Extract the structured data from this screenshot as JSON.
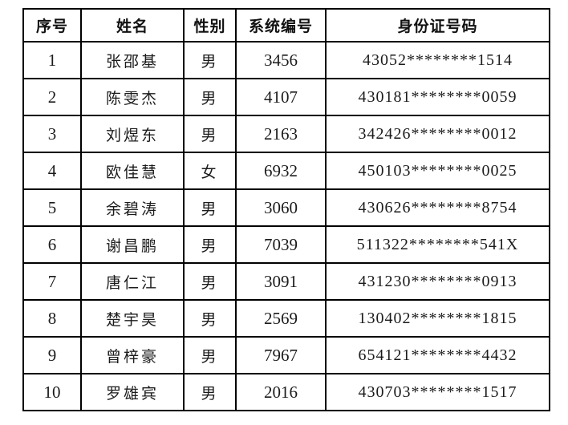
{
  "table": {
    "headers": {
      "serial": "序号",
      "name": "姓名",
      "gender": "性别",
      "system_id": "系统编号",
      "id_number": "身份证号码"
    },
    "rows": [
      {
        "no": "1",
        "name": "张邵基",
        "gender": "男",
        "system_id": "3456",
        "id_number": "43052********1514"
      },
      {
        "no": "2",
        "name": "陈雯杰",
        "gender": "男",
        "system_id": "4107",
        "id_number": "430181********0059"
      },
      {
        "no": "3",
        "name": "刘煜东",
        "gender": "男",
        "system_id": "2163",
        "id_number": "342426********0012"
      },
      {
        "no": "4",
        "name": "欧佳慧",
        "gender": "女",
        "system_id": "6932",
        "id_number": "450103********0025"
      },
      {
        "no": "5",
        "name": "余碧涛",
        "gender": "男",
        "system_id": "3060",
        "id_number": "430626********8754"
      },
      {
        "no": "6",
        "name": "谢昌鹏",
        "gender": "男",
        "system_id": "7039",
        "id_number": "511322********541X"
      },
      {
        "no": "7",
        "name": "唐仁江",
        "gender": "男",
        "system_id": "3091",
        "id_number": "431230********0913"
      },
      {
        "no": "8",
        "name": "楚宇昊",
        "gender": "男",
        "system_id": "2569",
        "id_number": "130402********1815"
      },
      {
        "no": "9",
        "name": "曾梓豪",
        "gender": "男",
        "system_id": "7967",
        "id_number": "654121********4432"
      },
      {
        "no": "10",
        "name": "罗雄宾",
        "gender": "男",
        "system_id": "2016",
        "id_number": "430703********1517"
      }
    ]
  },
  "colors": {
    "border": "#000000",
    "text": "#1b1b1b",
    "background": "#ffffff"
  }
}
